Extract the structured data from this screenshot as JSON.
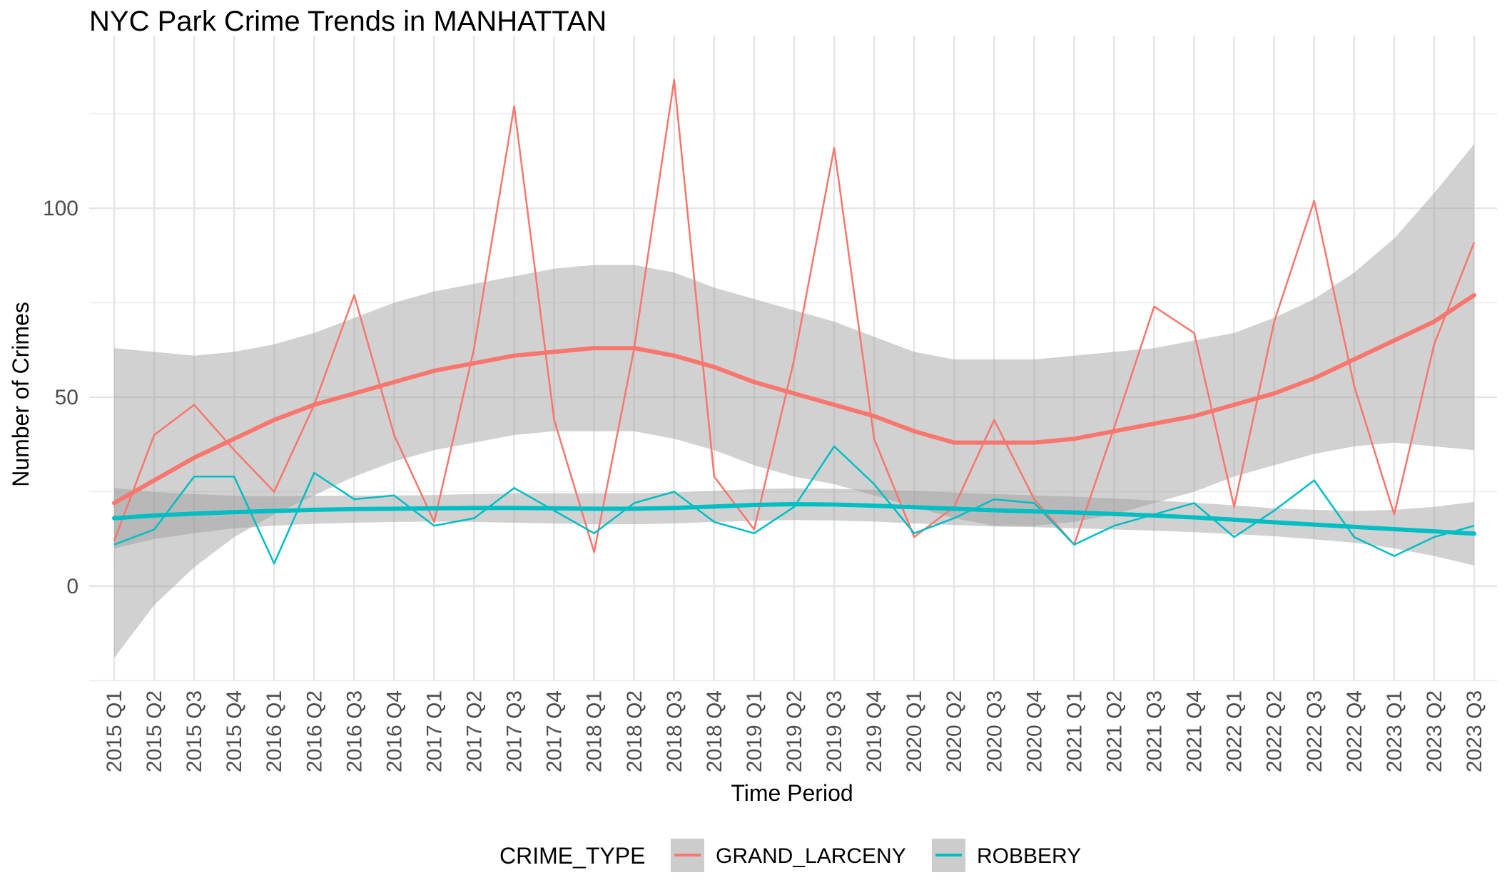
{
  "chart_data": {
    "type": "line",
    "title": "NYC Park Crime Trends in MANHATTAN",
    "xlabel": "Time Period",
    "ylabel": "Number of Crimes",
    "ylim": [
      -25,
      150
    ],
    "yticks": [
      0,
      50,
      100
    ],
    "grid": true,
    "legend": {
      "title": "CRIME_TYPE",
      "position": "bottom"
    },
    "categories": [
      "2015 Q1",
      "2015 Q2",
      "2015 Q3",
      "2015 Q4",
      "2016 Q1",
      "2016 Q2",
      "2016 Q3",
      "2016 Q4",
      "2017 Q1",
      "2017 Q2",
      "2017 Q3",
      "2017 Q4",
      "2018 Q1",
      "2018 Q2",
      "2018 Q3",
      "2018 Q4",
      "2019 Q1",
      "2019 Q2",
      "2019 Q3",
      "2019 Q4",
      "2020 Q1",
      "2020 Q2",
      "2020 Q3",
      "2020 Q4",
      "2021 Q1",
      "2021 Q2",
      "2021 Q3",
      "2021 Q4",
      "2022 Q1",
      "2022 Q2",
      "2022 Q3",
      "2022 Q4",
      "2023 Q1",
      "2023 Q2",
      "2023 Q3"
    ],
    "series": [
      {
        "name": "GRAND_LARCENY",
        "color": "#F8766D",
        "values": [
          12,
          40,
          48,
          36,
          25,
          48,
          77,
          40,
          17,
          63,
          127,
          44,
          9,
          63,
          134,
          29,
          15,
          60,
          116,
          39,
          13,
          21,
          44,
          23,
          11,
          42,
          74,
          67,
          21,
          70,
          102,
          53,
          19,
          64,
          91
        ],
        "smooth": [
          22,
          28,
          34,
          39,
          44,
          48,
          51,
          54,
          57,
          59,
          61,
          62,
          63,
          63,
          61,
          58,
          54,
          51,
          48,
          45,
          41,
          38,
          38,
          38,
          39,
          41,
          43,
          45,
          48,
          51,
          55,
          60,
          65,
          70,
          77
        ],
        "ci_lower": [
          -19,
          -5,
          5,
          13,
          19,
          24,
          29,
          33,
          36,
          38,
          40,
          41,
          41,
          41,
          39,
          36,
          32,
          29,
          27,
          24,
          21,
          18,
          16,
          16,
          17,
          19,
          22,
          25,
          29,
          32,
          35,
          37,
          38,
          37,
          36
        ],
        "ci_upper": [
          63,
          62,
          61,
          62,
          64,
          67,
          71,
          75,
          78,
          80,
          82,
          84,
          85,
          85,
          83,
          79,
          76,
          73,
          70,
          66,
          62,
          60,
          60,
          60,
          61,
          62,
          63,
          65,
          67,
          71,
          76,
          83,
          92,
          104,
          117
        ]
      },
      {
        "name": "ROBBERY",
        "color": "#00BFC4",
        "values": [
          11,
          15,
          29,
          29,
          6,
          30,
          23,
          24,
          16,
          18,
          26,
          20,
          14,
          22,
          25,
          17,
          14,
          21,
          37,
          27,
          14,
          18,
          23,
          22,
          11,
          16,
          19,
          22,
          13,
          20,
          28,
          13,
          8,
          13,
          16
        ],
        "smooth": [
          18,
          18.7,
          19.2,
          19.6,
          19.9,
          20.2,
          20.4,
          20.5,
          20.6,
          20.7,
          20.7,
          20.6,
          20.5,
          20.5,
          20.7,
          21.1,
          21.5,
          21.7,
          21.6,
          21.3,
          20.9,
          20.5,
          20.1,
          19.8,
          19.5,
          19.1,
          18.7,
          18.2,
          17.6,
          16.9,
          16.3,
          15.7,
          15.1,
          14.5,
          13.9
        ],
        "ci_lower": [
          10,
          12.5,
          14,
          15.3,
          16,
          16.5,
          16.8,
          17,
          17.1,
          17,
          16.8,
          16.6,
          16.4,
          16.4,
          16.6,
          17,
          17.3,
          17.5,
          17.4,
          17.1,
          16.6,
          16.2,
          15.8,
          15.6,
          15.3,
          15,
          14.7,
          14.3,
          13.8,
          13.2,
          12.4,
          11.5,
          10,
          8,
          5.5
        ],
        "ci_upper": [
          26,
          24.9,
          24.4,
          23.9,
          23.8,
          23.9,
          24,
          24,
          24.1,
          24.4,
          24.6,
          24.6,
          24.6,
          24.6,
          24.8,
          25.2,
          25.7,
          25.9,
          25.8,
          25.5,
          25.2,
          24.8,
          24.4,
          24,
          23.7,
          23.2,
          22.7,
          22.1,
          21.4,
          20.6,
          20.2,
          19.9,
          20.2,
          21,
          22.3
        ]
      }
    ]
  }
}
